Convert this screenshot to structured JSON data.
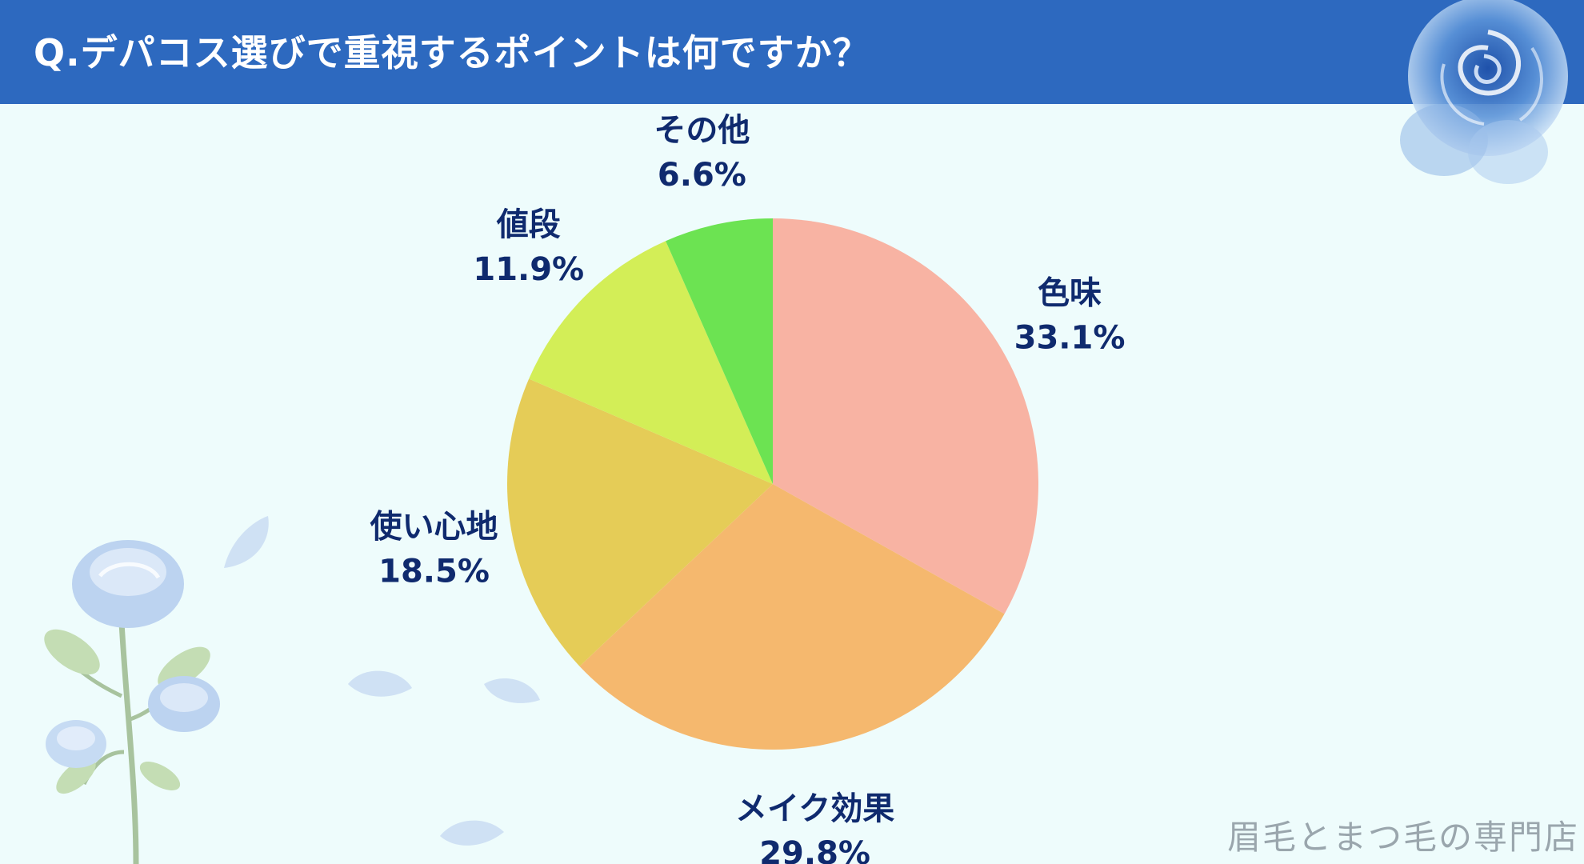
{
  "header": {
    "title": "Q.デパコス選びで重視するポイントは何ですか？",
    "bg_color": "#2d69bf"
  },
  "chart_data": {
    "type": "pie",
    "title": "Q.デパコス選びで重視するポイントは何ですか？",
    "start_angle_deg": 0,
    "direction": "clockwise",
    "slices": [
      {
        "label": "色味",
        "value": 33.1,
        "display": "33.1%",
        "color": "#f8b3a3"
      },
      {
        "label": "メイク効果",
        "value": 29.8,
        "display": "29.8%",
        "color": "#f5b86e"
      },
      {
        "label": "使い心地",
        "value": 18.5,
        "display": "18.5%",
        "color": "#e5cc57"
      },
      {
        "label": "値段",
        "value": 11.9,
        "display": "11.9%",
        "color": "#d3ee57"
      },
      {
        "label": "その他",
        "value": 6.6,
        "display": "6.6%",
        "color": "#6ce352"
      }
    ],
    "label_color": "#0f2a6e"
  },
  "footer": {
    "watermark": "眉毛とまつ毛の専門店"
  },
  "decorations": {
    "top_right": "blue-rose-icon",
    "bottom_left": "blue-rose-bouquet-icon",
    "petals": "blue-petal-icon"
  }
}
